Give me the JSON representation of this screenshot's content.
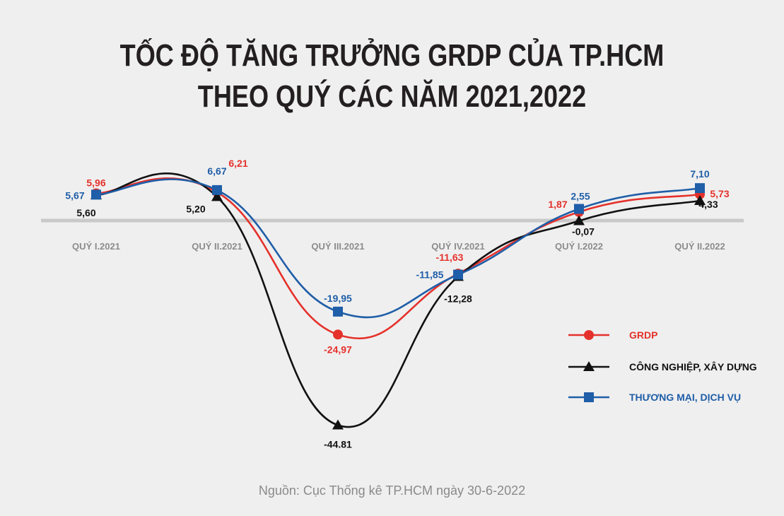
{
  "title_lines": [
    "TỐC ĐỘ TĂNG TRƯỞNG GRDP CỦA TP.HCM",
    "THEO QUÝ CÁC NĂM 2021,2022"
  ],
  "source": "Nguồn: Cục Thống kê TP.HCM ngày 30-6-2022",
  "chart_data": {
    "type": "line",
    "categories": [
      "QUÝ I.2021",
      "QUÝ II.2021",
      "QUÝ III.2021",
      "QUÝ IV.2021",
      "QUÝ I.2022",
      "QUÝ II.2022"
    ],
    "series": [
      {
        "name": "GRDP",
        "color": "#e5312b",
        "marker": "circle",
        "values": [
          5.96,
          6.21,
          -24.97,
          -11.63,
          1.87,
          5.73
        ],
        "labels": [
          "5,96",
          "6,21",
          "-24,97",
          "-11,63",
          "1,87",
          "5,73"
        ]
      },
      {
        "name": "CÔNG NGHIỆP, XÂY DỰNG",
        "color": "#111111",
        "marker": "triangle",
        "values": [
          5.6,
          5.2,
          -44.81,
          -12.28,
          -0.07,
          4.33
        ],
        "labels": [
          "5,60",
          "5,20",
          "-44.81",
          "-12,28",
          "-0,07",
          "4,33"
        ]
      },
      {
        "name": "THƯƠNG MẠI, DỊCH VỤ",
        "color": "#1f5ea8",
        "marker": "square",
        "values": [
          5.67,
          6.67,
          -19.95,
          -11.85,
          2.55,
          7.1
        ],
        "labels": [
          "5,67",
          "6,67",
          "-19,95",
          "-11,85",
          "2,55",
          "7,10"
        ]
      }
    ],
    "zero_line": true,
    "grid": false,
    "legend_position": "right",
    "xlabel": "",
    "ylabel": "",
    "ylim": [
      -47,
      10
    ]
  }
}
